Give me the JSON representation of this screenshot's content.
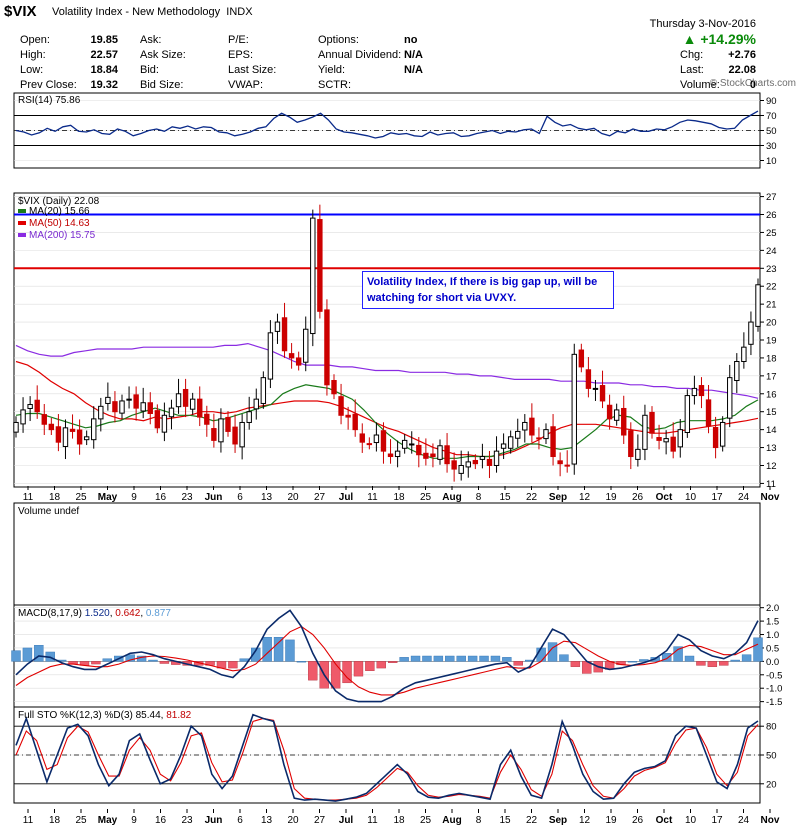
{
  "header": {
    "symbol": "$VIX",
    "name": "Volatility Index - New Methodology",
    "exchange": "INDX",
    "date": "Thursday  3-Nov-2016",
    "change_pct": "▲ +14.29%",
    "quote_labels": [
      "Open:",
      "High:",
      "Low:",
      "Prev Close:"
    ],
    "quote_values": [
      "19.85",
      "22.57",
      "18.84",
      "19.32"
    ],
    "col2_labels": [
      "Ask:",
      "Ask Size:",
      "Bid:",
      "Bid Size:"
    ],
    "col3_labels": [
      "P/E:",
      "EPS:",
      "Last Size:",
      "VWAP:"
    ],
    "col4_labels": [
      "Options:",
      "Annual Dividend:",
      "Yield:",
      "SCTR:"
    ],
    "col4_values": [
      "no",
      "N/A",
      "N/A",
      ""
    ],
    "col5_labels": [
      "Chg:",
      "Last:",
      "Volume:"
    ],
    "col5_values": [
      "+2.76",
      "22.08",
      "0"
    ]
  },
  "watermark": "© StockCharts.com",
  "annotation": "Volatility Index, If there is big gap up, will be watching for short via UVXY.",
  "panels": {
    "rsi": "RSI(14) 75.86",
    "price": "$VIX (Daily) 22.08",
    "ma20": "MA(20) 15.66",
    "ma50": "MA(50) 14.63",
    "ma200": "MA(200) 15.75",
    "volume": "Volume undef",
    "macd_name": "MACD(8,17,9)",
    "macd_v1": "1.520",
    "macd_v2": "0.642",
    "macd_v3": "0.877",
    "sto_name": "Full STO %K(12,3) %D(3)",
    "sto_v1": "85.44",
    "sto_v2": "81.82"
  },
  "colors": {
    "price_up": "#000000",
    "price_down": "#cc0000",
    "ma20": "#1a7a1a",
    "ma50": "#e00000",
    "ma200": "#8a2be2",
    "rsi": "#0a2a8a",
    "hist": "#ef5a6a",
    "hist_pos": "#5b9bd5",
    "resistance_blue": "#0000ff",
    "resistance_red": "#e00000"
  },
  "chart_data": [
    {
      "type": "line",
      "title": "RSI(14) 75.86",
      "y_ticks": [
        90,
        70,
        50,
        30,
        10
      ],
      "ylim": [
        10,
        90
      ],
      "overbought": 70,
      "oversold": 30,
      "midline": 50,
      "values": [
        50,
        48,
        44,
        47,
        53,
        49,
        55,
        57,
        49,
        48,
        51,
        46,
        45,
        52,
        49,
        43,
        46,
        50,
        52,
        49,
        55,
        53,
        56,
        52,
        55,
        54,
        48,
        47,
        43,
        45,
        48,
        53,
        55,
        66,
        73,
        68,
        61,
        64,
        68,
        73,
        64,
        52,
        48,
        47,
        45,
        43,
        40,
        42,
        47,
        45,
        46,
        43,
        42,
        48,
        44,
        46,
        47,
        42,
        43,
        46,
        48,
        50,
        46,
        49,
        48,
        51,
        52,
        46,
        69,
        61,
        56,
        58,
        53,
        51,
        53,
        46,
        43,
        49,
        47,
        52,
        49,
        49,
        52,
        51,
        55,
        61,
        64,
        63,
        61,
        59,
        54,
        52,
        53,
        64,
        70,
        75.86
      ]
    },
    {
      "type": "candlestick",
      "title": "$VIX (Daily) 22.08",
      "y_ticks": [
        11,
        12,
        13,
        14,
        15,
        16,
        17,
        18,
        19,
        20,
        21,
        22,
        23,
        24,
        25,
        26,
        27
      ],
      "ylim": [
        10.8,
        27.2
      ],
      "x_tick_labels": [
        "11",
        "18",
        "25",
        "May",
        "9",
        "16",
        "23",
        "Jun",
        "6",
        "13",
        "20",
        "27",
        "Jul",
        "11",
        "18",
        "25",
        "Aug",
        "8",
        "15",
        "22",
        "Sep",
        "12",
        "19",
        "26",
        "Oct",
        "10",
        "17",
        "24",
        "Nov"
      ],
      "resistance_lines": [
        26.0,
        23.0
      ],
      "closes": [
        14.4,
        15.1,
        15.4,
        15.0,
        14.3,
        14.0,
        13.3,
        14.1,
        13.9,
        13.2,
        13.6,
        14.6,
        15.3,
        15.8,
        15.0,
        15.6,
        15.7,
        15.2,
        15.5,
        14.9,
        14.1,
        14.8,
        15.2,
        16.0,
        15.3,
        15.7,
        14.7,
        14.3,
        13.4,
        14.6,
        13.9,
        13.2,
        14.4,
        15.0,
        15.7,
        16.9,
        19.4,
        20.0,
        18.4,
        18.0,
        17.6,
        19.6,
        25.8,
        20.6,
        16.5,
        16.0,
        14.8,
        14.7,
        14.0,
        13.3,
        13.2,
        13.7,
        12.8,
        12.5,
        12.8,
        13.4,
        13.2,
        12.6,
        12.4,
        12.5,
        13.1,
        12.1,
        11.8,
        12.0,
        12.2,
        12.1,
        12.5,
        12.0,
        12.8,
        13.2,
        13.6,
        13.9,
        14.4,
        13.7,
        13.5,
        14.0,
        12.5,
        12.1,
        12.0,
        18.2,
        17.5,
        16.3,
        16.3,
        15.6,
        14.6,
        15.1,
        13.7,
        12.5,
        12.9,
        14.8,
        13.8,
        13.4,
        13.5,
        12.8,
        14.0,
        15.9,
        16.3,
        15.9,
        14.2,
        13.0,
        14.4,
        16.9,
        17.8,
        18.6,
        20.0,
        22.08
      ],
      "series": [
        {
          "name": "MA(20)",
          "last": 15.66,
          "values": [
            14.8,
            14.9,
            14.9,
            14.7,
            14.5,
            14.3,
            14.1,
            14.2,
            14.4,
            14.5,
            14.8,
            15.0,
            15.2,
            15.0,
            14.8,
            14.8,
            14.7,
            14.5,
            14.6,
            14.8,
            15.0,
            15.2,
            15.4,
            16.0,
            16.3,
            16.5,
            16.4,
            16.3,
            16.0,
            15.7,
            15.1,
            14.4,
            13.8,
            13.3,
            12.9,
            12.6,
            12.4,
            12.4,
            12.4,
            12.5,
            12.5,
            12.5,
            12.7,
            12.9,
            13.2,
            13.2,
            13.0,
            12.9,
            13.0,
            13.5,
            14.0,
            14.6,
            14.8,
            14.7,
            14.2,
            14.0,
            14.1,
            14.4,
            14.5,
            14.5,
            14.5,
            14.6,
            14.8,
            15.3,
            15.66
          ]
        },
        {
          "name": "MA(50)",
          "last": 14.63,
          "values": [
            17.8,
            17.6,
            17.2,
            16.7,
            16.3,
            16.0,
            15.5,
            15.1,
            14.8,
            14.6,
            14.6,
            14.5,
            14.7,
            14.6,
            14.7,
            14.8,
            15.0,
            15.0,
            14.9,
            15.0,
            15.2,
            15.3,
            15.4,
            15.5,
            15.6,
            15.6,
            15.6,
            15.5,
            15.3,
            15.0,
            14.7,
            14.4,
            14.1,
            13.9,
            13.6,
            13.3,
            13.0,
            12.8,
            12.6,
            12.6,
            12.5,
            12.5,
            12.6,
            12.8,
            13.1,
            13.4,
            13.8,
            14.1,
            14.3,
            14.3,
            14.3,
            14.2,
            14.1,
            14.0,
            13.9,
            13.8,
            13.8,
            13.9,
            14.0,
            14.1,
            14.2,
            14.3,
            14.4,
            14.5,
            14.63
          ]
        },
        {
          "name": "MA(200)",
          "last": 15.75,
          "values": [
            18.7,
            18.4,
            18.2,
            18.1,
            18.1,
            18.3,
            18.4,
            18.5,
            18.5,
            18.5,
            18.5,
            18.6,
            18.6,
            18.6,
            18.6,
            18.6,
            18.6,
            18.6,
            18.7,
            18.7,
            18.8,
            18.6,
            18.4,
            18.1,
            17.8,
            17.6,
            17.6,
            17.6,
            17.5,
            17.5,
            17.4,
            17.3,
            17.3,
            17.3,
            17.2,
            17.2,
            17.2,
            17.2,
            17.1,
            17.1,
            17.0,
            17.0,
            16.9,
            16.8,
            16.8,
            16.8,
            16.8,
            16.7,
            16.7,
            16.7,
            16.6,
            16.6,
            16.6,
            16.5,
            16.5,
            16.4,
            16.4,
            16.3,
            16.3,
            16.2,
            16.2,
            16.1,
            16.0,
            15.9,
            15.75
          ]
        }
      ]
    },
    {
      "type": "bar",
      "title": "Volume undef",
      "values": []
    },
    {
      "type": "line",
      "title": "MACD(8,17,9)",
      "y_ticks": [
        2.0,
        1.5,
        1.0,
        0.5,
        0.0,
        -0.5,
        -1.0,
        -1.5
      ],
      "ylim": [
        -1.7,
        2.1
      ],
      "series": [
        {
          "name": "MACD",
          "last": 1.52,
          "values": [
            -0.5,
            -0.1,
            0.2,
            0.15,
            -0.05,
            -0.2,
            -0.3,
            -0.3,
            -0.1,
            0.1,
            0.3,
            0.35,
            0.25,
            0.1,
            0.0,
            -0.1,
            -0.2,
            -0.3,
            -0.5,
            -0.6,
            -0.2,
            0.4,
            1.2,
            1.6,
            1.9,
            1.3,
            0.3,
            -0.5,
            -1.1,
            -1.4,
            -1.5,
            -1.5,
            -1.5,
            -1.3,
            -1.0,
            -0.8,
            -0.7,
            -0.6,
            -0.5,
            -0.4,
            -0.3,
            -0.2,
            -0.1,
            -0.05,
            -0.4,
            -0.2,
            0.5,
            1.2,
            1.0,
            0.5,
            0.0,
            -0.2,
            -0.3,
            -0.25,
            -0.15,
            -0.05,
            0.1,
            0.4,
            1.0,
            0.8,
            0.4,
            0.2,
            0.1,
            0.3,
            0.7,
            1.52
          ]
        },
        {
          "name": "Signal",
          "last": 0.642,
          "values": [
            -0.9,
            -0.6,
            -0.4,
            -0.2,
            -0.1,
            -0.1,
            -0.15,
            -0.2,
            -0.2,
            -0.1,
            0.05,
            0.15,
            0.2,
            0.18,
            0.12,
            0.05,
            -0.05,
            -0.15,
            -0.25,
            -0.35,
            -0.3,
            -0.1,
            0.3,
            0.7,
            1.1,
            1.3,
            1.0,
            0.5,
            -0.1,
            -0.6,
            -0.95,
            -1.15,
            -1.25,
            -1.25,
            -1.15,
            -1.0,
            -0.9,
            -0.8,
            -0.7,
            -0.6,
            -0.5,
            -0.4,
            -0.3,
            -0.2,
            -0.25,
            -0.25,
            0.0,
            0.5,
            0.75,
            0.7,
            0.45,
            0.2,
            0.0,
            -0.12,
            -0.15,
            -0.12,
            -0.05,
            0.1,
            0.45,
            0.6,
            0.55,
            0.4,
            0.25,
            0.25,
            0.45,
            0.642
          ]
        }
      ],
      "histogram_last": 0.877
    },
    {
      "type": "line",
      "title": "Full STO %K(12,3) %D(3)",
      "y_ticks": [
        80,
        50,
        20
      ],
      "ylim": [
        0,
        100
      ],
      "series": [
        {
          "name": "%K",
          "last": 85.44,
          "values": [
            60,
            88,
            55,
            22,
            50,
            78,
            82,
            70,
            40,
            18,
            30,
            65,
            72,
            45,
            20,
            25,
            50,
            80,
            70,
            30,
            15,
            28,
            60,
            92,
            88,
            85,
            40,
            5,
            3,
            4,
            3,
            2,
            4,
            6,
            10,
            20,
            30,
            40,
            30,
            12,
            6,
            5,
            8,
            10,
            8,
            6,
            4,
            40,
            55,
            28,
            8,
            5,
            40,
            85,
            60,
            30,
            12,
            4,
            5,
            20,
            32,
            36,
            38,
            44,
            70,
            80,
            78,
            50,
            22,
            15,
            40,
            78,
            85.44
          ]
        },
        {
          "name": "%D",
          "last": 81.82,
          "values": [
            50,
            75,
            65,
            35,
            40,
            68,
            80,
            74,
            50,
            28,
            28,
            55,
            68,
            55,
            30,
            23,
            42,
            70,
            73,
            42,
            22,
            24,
            52,
            85,
            88,
            86,
            55,
            15,
            5,
            4,
            3,
            3,
            4,
            5,
            8,
            16,
            26,
            36,
            32,
            18,
            8,
            6,
            7,
            9,
            8,
            7,
            5,
            32,
            50,
            35,
            14,
            7,
            30,
            75,
            65,
            40,
            18,
            7,
            5,
            15,
            28,
            34,
            37,
            42,
            62,
            76,
            78,
            58,
            30,
            18,
            32,
            70,
            81.82
          ]
        }
      ]
    }
  ]
}
